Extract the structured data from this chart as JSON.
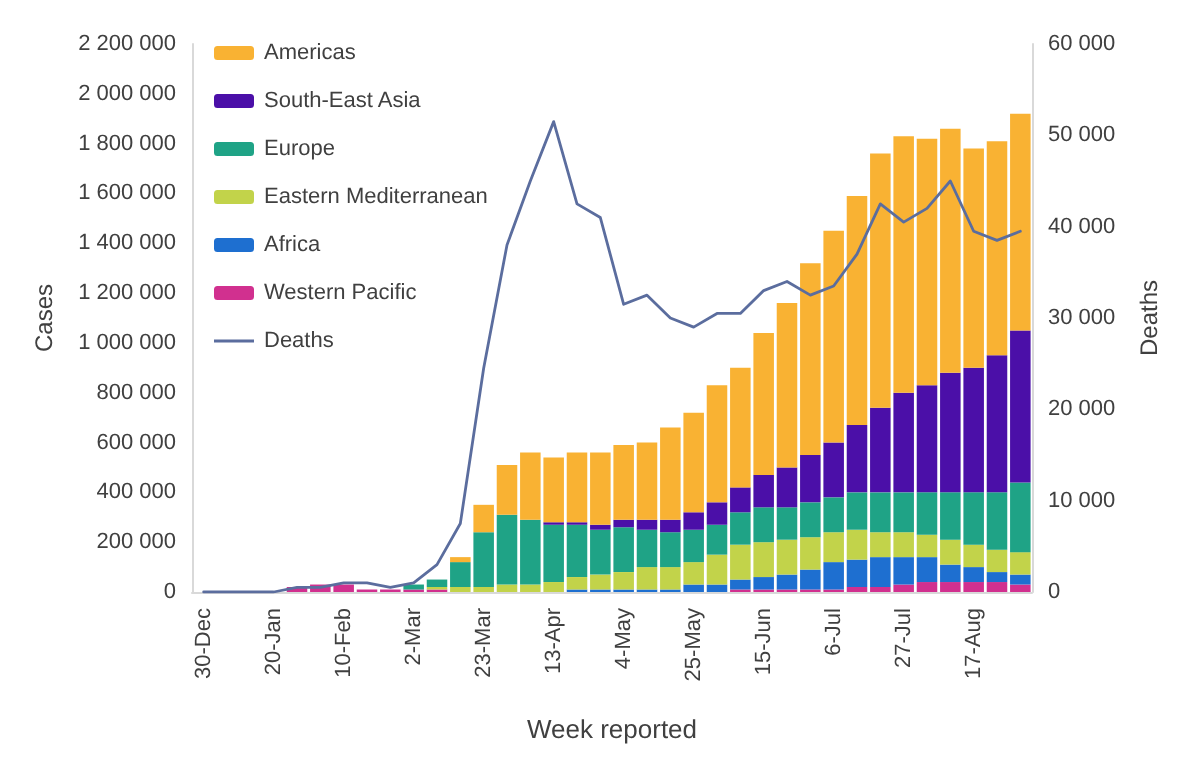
{
  "chart_data": {
    "type": "bar",
    "stacked": true,
    "xlabel": "Week reported",
    "ylabel": "Cases",
    "y2label": "Deaths",
    "categories": [
      "30-Dec",
      null,
      null,
      "20-Jan",
      null,
      null,
      "10-Feb",
      null,
      null,
      "2-Mar",
      null,
      null,
      "23-Mar",
      null,
      null,
      "13-Apr",
      null,
      null,
      "4-May",
      null,
      null,
      "25-May",
      null,
      null,
      "15-Jun",
      null,
      null,
      "6-Jul",
      null,
      null,
      "27-Jul",
      null,
      null,
      "17-Aug",
      null,
      null
    ],
    "series": [
      {
        "name": "Western Pacific",
        "color": "#d1308f",
        "values": [
          0,
          0,
          0,
          null,
          20000,
          30000,
          30000,
          10000,
          10000,
          10000,
          10000,
          0,
          0,
          0,
          0,
          0,
          0,
          0,
          0,
          0,
          0,
          0,
          0,
          10000,
          10000,
          10000,
          10000,
          10000,
          20000,
          20000,
          30000,
          40000,
          40000,
          40000,
          40000,
          30000
        ]
      },
      {
        "name": "Africa",
        "color": "#1e6fd0",
        "values": [
          0,
          0,
          0,
          0,
          0,
          0,
          0,
          0,
          0,
          0,
          0,
          0,
          0,
          0,
          0,
          0,
          10000,
          10000,
          10000,
          10000,
          10000,
          30000,
          30000,
          40000,
          50000,
          60000,
          80000,
          110000,
          110000,
          120000,
          110000,
          100000,
          70000,
          60000,
          40000,
          40000
        ]
      },
      {
        "name": "Eastern Mediterranean",
        "color": "#c2d34a",
        "values": [
          0,
          0,
          0,
          0,
          0,
          0,
          0,
          0,
          0,
          0,
          10000,
          20000,
          20000,
          30000,
          30000,
          40000,
          50000,
          60000,
          70000,
          90000,
          90000,
          90000,
          120000,
          140000,
          140000,
          140000,
          130000,
          120000,
          120000,
          100000,
          100000,
          90000,
          100000,
          90000,
          90000,
          90000
        ]
      },
      {
        "name": "Europe",
        "color": "#1fa386",
        "values": [
          0,
          0,
          0,
          0,
          0,
          0,
          0,
          0,
          0,
          20000,
          30000,
          100000,
          220000,
          280000,
          260000,
          230000,
          210000,
          180000,
          180000,
          150000,
          140000,
          130000,
          120000,
          130000,
          140000,
          130000,
          140000,
          140000,
          150000,
          160000,
          160000,
          170000,
          190000,
          210000,
          230000,
          280000
        ]
      },
      {
        "name": "South-East Asia",
        "color": "#4b0fa8",
        "values": [
          0,
          0,
          0,
          0,
          0,
          0,
          0,
          0,
          0,
          0,
          0,
          0,
          0,
          0,
          0,
          10000,
          10000,
          20000,
          30000,
          40000,
          50000,
          70000,
          90000,
          100000,
          130000,
          160000,
          190000,
          220000,
          270000,
          340000,
          400000,
          430000,
          480000,
          500000,
          550000,
          610000
        ]
      },
      {
        "name": "Americas",
        "color": "#f9b233",
        "values": [
          0,
          0,
          0,
          0,
          0,
          0,
          0,
          0,
          0,
          0,
          0,
          20000,
          110000,
          200000,
          270000,
          260000,
          280000,
          290000,
          300000,
          310000,
          370000,
          400000,
          470000,
          480000,
          570000,
          660000,
          770000,
          850000,
          920000,
          1020000,
          1030000,
          990000,
          980000,
          880000,
          860000,
          870000
        ]
      },
      {
        "name": "Deaths",
        "type": "line",
        "axis": "y2",
        "color": "#5b6d9e",
        "values": [
          0,
          0,
          0,
          0,
          500,
          500,
          1000,
          1000,
          500,
          1000,
          3000,
          7500,
          24500,
          38000,
          45000,
          51500,
          42500,
          41000,
          31500,
          32500,
          30000,
          29000,
          30500,
          30500,
          33000,
          34000,
          32500,
          33500,
          37000,
          42500,
          40500,
          42000,
          45000,
          39500,
          38500,
          39500
        ]
      }
    ],
    "ylim": [
      0,
      2200000
    ],
    "yticks": [
      {
        "value": 0,
        "label": "0"
      },
      {
        "value": 200000,
        "label": "200 000"
      },
      {
        "value": 400000,
        "label": "400 000"
      },
      {
        "value": 600000,
        "label": "600 000"
      },
      {
        "value": 800000,
        "label": "800 000"
      },
      {
        "value": 1000000,
        "label": "1 000 000"
      },
      {
        "value": 1200000,
        "label": "1 200 000"
      },
      {
        "value": 1400000,
        "label": "1 400 000"
      },
      {
        "value": 1600000,
        "label": "1 600 000"
      },
      {
        "value": 1800000,
        "label": "1 800 000"
      },
      {
        "value": 2000000,
        "label": "2 000 000"
      },
      {
        "value": 2200000,
        "label": "2 200 000"
      }
    ],
    "y2lim": [
      0,
      60000
    ],
    "y2ticks": [
      {
        "value": 0,
        "label": "0"
      },
      {
        "value": 10000,
        "label": "10 000"
      },
      {
        "value": 20000,
        "label": "20 000"
      },
      {
        "value": 30000,
        "label": "30 000"
      },
      {
        "value": 40000,
        "label": "40 000"
      },
      {
        "value": 50000,
        "label": "50 000"
      },
      {
        "value": 60000,
        "label": "60 000"
      }
    ],
    "grid": false,
    "legend": "top left",
    "marker": "none",
    "line_style": "solid"
  }
}
